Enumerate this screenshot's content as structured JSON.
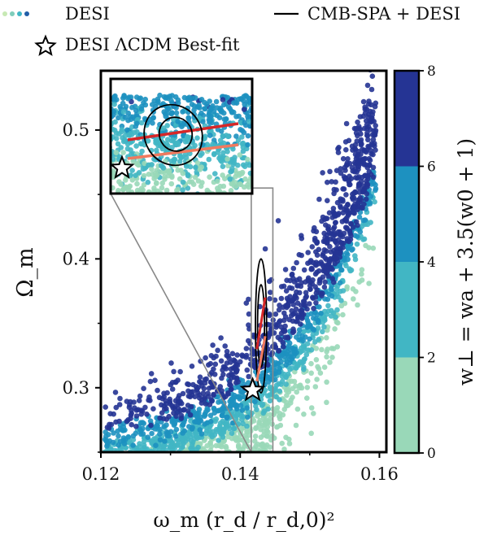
{
  "chart_data": {
    "type": "scatter",
    "title": "",
    "xlabel": "ω_m (r_d / r_d,0)²",
    "ylabel": "Ω_m",
    "xlim": [
      0.12,
      0.161
    ],
    "ylim": [
      0.25,
      0.546
    ],
    "xticks": [
      "0.12",
      "0.14",
      "0.16"
    ],
    "xtick_values": [
      0.12,
      0.14,
      0.16
    ],
    "yticks": [
      "0.3",
      "0.4",
      "0.5"
    ],
    "ytick_values": [
      0.3,
      0.4,
      0.5
    ],
    "legend": {
      "placement": "top",
      "entries": [
        {
          "label": "DESI",
          "marker": "colored-dots"
        },
        {
          "label": "CMB-SPA + DESI",
          "marker": "black-line"
        },
        {
          "label": "DESI ΛCDM Best-fit",
          "marker": "star"
        }
      ]
    },
    "colorbar": {
      "label": "w⊥ = wa + 3.5(w0 + 1)",
      "ticks": [
        "0",
        "2",
        "4",
        "6",
        "8"
      ],
      "tick_values": [
        0,
        2,
        4,
        6,
        8
      ],
      "range": [
        0,
        8
      ],
      "bins": [
        {
          "from": 0,
          "to": 2,
          "color": "#99d8b8"
        },
        {
          "from": 2,
          "to": 4,
          "color": "#41b6c4"
        },
        {
          "from": 4,
          "to": 6,
          "color": "#1d91c0"
        },
        {
          "from": 6,
          "to": 8,
          "color": "#253494"
        }
      ]
    },
    "scatter_band": {
      "description": "DESI posterior samples colored by w_perp",
      "x_range": [
        0.12,
        0.16
      ],
      "n_points": 2600
    },
    "best_fit_star": {
      "x": 0.1418,
      "y": 0.298
    },
    "cmb_spa_desi_contours": {
      "center": {
        "x": 0.143,
        "y": 0.348
      },
      "inner": {
        "half_width_x": 0.0005,
        "half_height_y": 0.032
      },
      "outer": {
        "half_width_x": 0.0008,
        "half_height_y": 0.052
      }
    },
    "red_lines": [
      {
        "color": "#d62728",
        "x": [
          0.1424,
          0.1436
        ],
        "y": [
          0.33,
          0.37
        ]
      },
      {
        "color": "#f07a5f",
        "x": [
          0.1424,
          0.1436
        ],
        "y": [
          0.305,
          0.34
        ]
      }
    ],
    "zoom_region": {
      "x": [
        0.1416,
        0.1447
      ],
      "y": [
        0.25,
        0.455
      ]
    },
    "inset_window": "top-left"
  }
}
